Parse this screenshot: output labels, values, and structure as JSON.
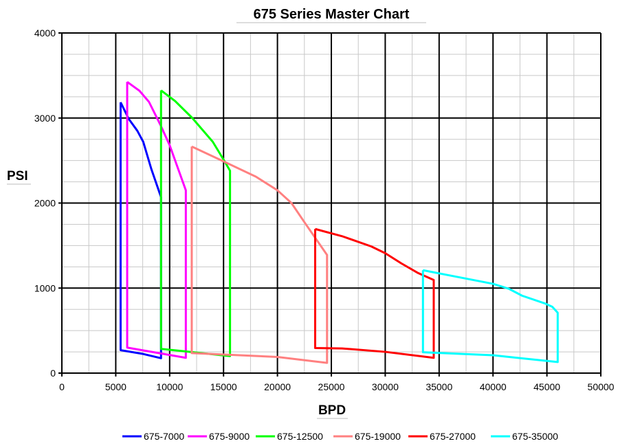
{
  "chart_data": {
    "type": "line",
    "title": "675 Series Master Chart",
    "xlabel": "BPD",
    "ylabel": "PSI",
    "xlim": [
      0,
      50000
    ],
    "ylim": [
      0,
      4000
    ],
    "xticks": [
      0,
      5000,
      10000,
      15000,
      20000,
      25000,
      30000,
      35000,
      40000,
      45000,
      50000
    ],
    "yticks": [
      0,
      1000,
      2000,
      3000,
      4000
    ],
    "grid": true,
    "legend": "bottom",
    "series": [
      {
        "name": "675-7000",
        "color": "#0000ff",
        "points": [
          [
            5450,
            3185
          ],
          [
            6200,
            2990
          ],
          [
            7000,
            2850
          ],
          [
            7550,
            2720
          ],
          [
            8300,
            2400
          ],
          [
            9200,
            2070
          ],
          [
            9200,
            175
          ],
          [
            7550,
            225
          ],
          [
            5450,
            270
          ],
          [
            5450,
            3185
          ]
        ]
      },
      {
        "name": "675-9000",
        "color": "#ff00ff",
        "points": [
          [
            6060,
            3425
          ],
          [
            7200,
            3320
          ],
          [
            8080,
            3190
          ],
          [
            9140,
            2920
          ],
          [
            10000,
            2680
          ],
          [
            11500,
            2150
          ],
          [
            11500,
            180
          ],
          [
            6060,
            300
          ],
          [
            6060,
            3425
          ]
        ]
      },
      {
        "name": "675-12500",
        "color": "#00ff00",
        "points": [
          [
            9200,
            3325
          ],
          [
            10500,
            3200
          ],
          [
            12100,
            3000
          ],
          [
            14000,
            2720
          ],
          [
            15100,
            2490
          ],
          [
            15600,
            2380
          ],
          [
            15600,
            200
          ],
          [
            9200,
            285
          ],
          [
            9200,
            3325
          ]
        ]
      },
      {
        "name": "675-19000",
        "color": "#ff8080",
        "points": [
          [
            12050,
            2665
          ],
          [
            15000,
            2490
          ],
          [
            18000,
            2310
          ],
          [
            20000,
            2150
          ],
          [
            21300,
            2000
          ],
          [
            22500,
            1775
          ],
          [
            24600,
            1390
          ],
          [
            24600,
            120
          ],
          [
            20000,
            190
          ],
          [
            12050,
            235
          ],
          [
            12050,
            2665
          ]
        ]
      },
      {
        "name": "675-27000",
        "color": "#ff0000",
        "points": [
          [
            23500,
            1695
          ],
          [
            26000,
            1610
          ],
          [
            28700,
            1490
          ],
          [
            30000,
            1410
          ],
          [
            31500,
            1290
          ],
          [
            33000,
            1180
          ],
          [
            34500,
            1095
          ],
          [
            34500,
            180
          ],
          [
            30000,
            250
          ],
          [
            26000,
            290
          ],
          [
            23500,
            295
          ],
          [
            23500,
            1695
          ]
        ]
      },
      {
        "name": "675-35000",
        "color": "#00ffff",
        "points": [
          [
            33500,
            1210
          ],
          [
            40000,
            1050
          ],
          [
            41500,
            990
          ],
          [
            42700,
            910
          ],
          [
            44800,
            820
          ],
          [
            45500,
            780
          ],
          [
            46000,
            710
          ],
          [
            46000,
            130
          ],
          [
            40000,
            210
          ],
          [
            33500,
            245
          ],
          [
            33500,
            1210
          ]
        ]
      }
    ]
  }
}
